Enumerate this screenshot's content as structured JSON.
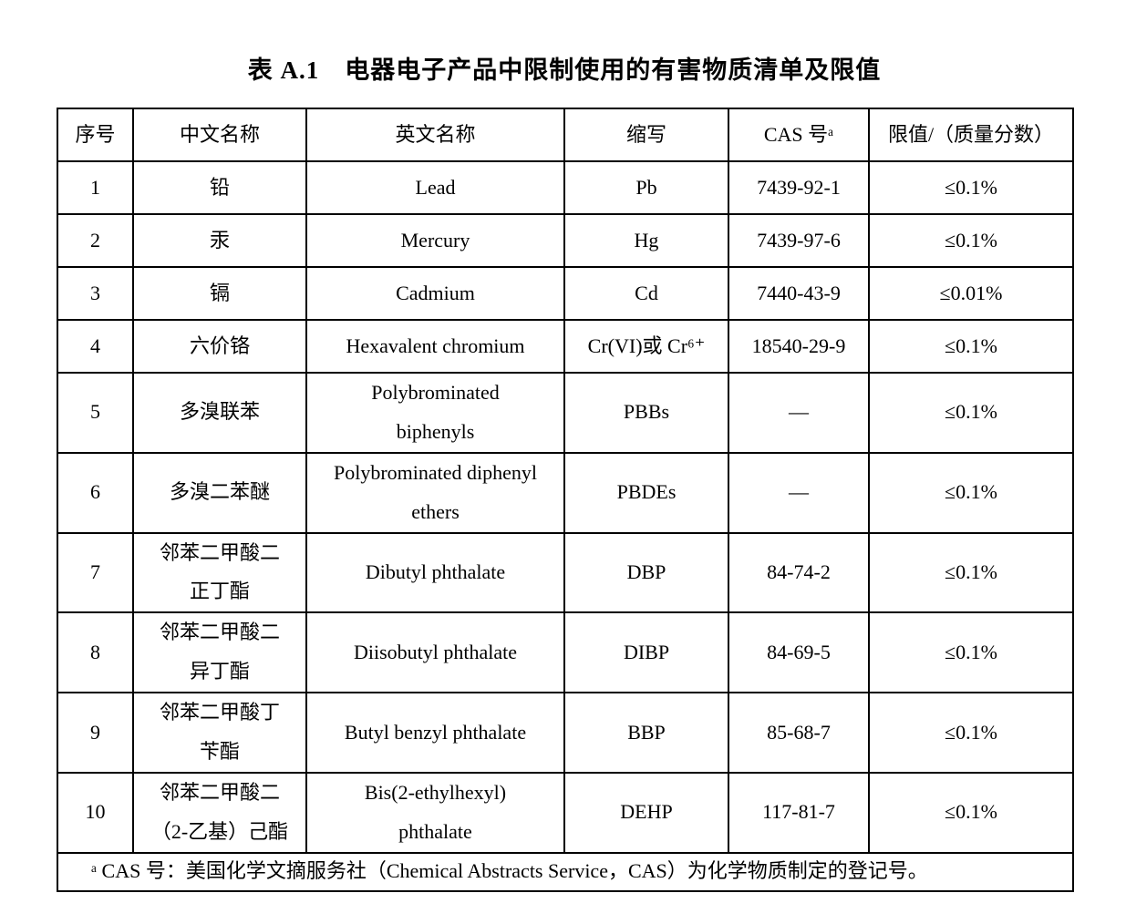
{
  "title": {
    "label": "表 A.1",
    "text": "电器电子产品中限制使用的有害物质清单及限值"
  },
  "table": {
    "columns": [
      "序号",
      "中文名称",
      "英文名称",
      "缩写",
      "CAS 号ᵃ",
      "限值/（质量分数）"
    ],
    "rows": [
      [
        "1",
        "铅",
        "Lead",
        "Pb",
        "7439-92-1",
        "≤0.1%"
      ],
      [
        "2",
        "汞",
        "Mercury",
        "Hg",
        "7439-97-6",
        "≤0.1%"
      ],
      [
        "3",
        "镉",
        "Cadmium",
        "Cd",
        "7440-43-9",
        "≤0.01%"
      ],
      [
        "4",
        "六价铬",
        "Hexavalent chromium",
        "Cr(VI)或 Cr⁶⁺",
        "18540-29-9",
        "≤0.1%"
      ],
      [
        "5",
        "多溴联苯",
        "Polybrominated\nbiphenyls",
        "PBBs",
        "—",
        "≤0.1%"
      ],
      [
        "6",
        "多溴二苯醚",
        "Polybrominated diphenyl\nethers",
        "PBDEs",
        "—",
        "≤0.1%"
      ],
      [
        "7",
        "邻苯二甲酸二\n正丁酯",
        "Dibutyl phthalate",
        "DBP",
        "84-74-2",
        "≤0.1%"
      ],
      [
        "8",
        "邻苯二甲酸二\n异丁酯",
        "Diisobutyl phthalate",
        "DIBP",
        "84-69-5",
        "≤0.1%"
      ],
      [
        "9",
        "邻苯二甲酸丁\n苄酯",
        "Butyl benzyl phthalate",
        "BBP",
        "85-68-7",
        "≤0.1%"
      ],
      [
        "10",
        "邻苯二甲酸二\n（2-乙基）己酯",
        "Bis(2-ethylhexyl)\nphthalate",
        "DEHP",
        "117-81-7",
        "≤0.1%"
      ]
    ],
    "footnote": "ᵃ CAS 号：美国化学文摘服务社（Chemical Abstracts Service，CAS）为化学物质制定的登记号。"
  },
  "colors": {
    "text": "#000000",
    "background": "#ffffff",
    "border": "#000000"
  }
}
